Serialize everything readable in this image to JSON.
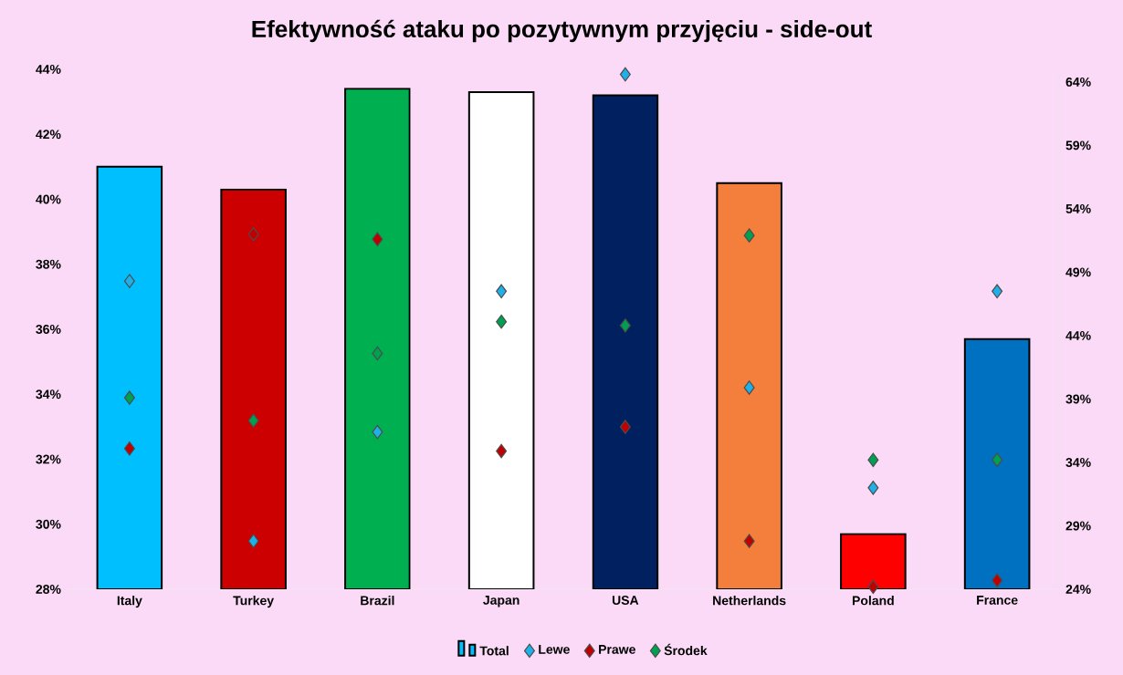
{
  "chart_data": {
    "type": "bar",
    "title": "Efektywność ataku po pozytywnym przyjęciu - side-out",
    "categories": [
      "Italy",
      "Turkey",
      "Brazil",
      "Japan",
      "USA",
      "Netherlands",
      "Poland",
      "France"
    ],
    "series": [
      {
        "name": "Total",
        "colors": [
          "#00bfff",
          "#cc0000",
          "#00b050",
          "#ffffff",
          "#002060",
          "#f47f3c",
          "#ff0000",
          "#0070c0"
        ],
        "values": [
          41.0,
          40.3,
          43.4,
          43.3,
          43.2,
          40.5,
          29.7,
          35.7
        ]
      },
      {
        "name": "Lewe",
        "type": "scatter",
        "axis": "y2",
        "color": "#1fb0e8",
        "values": [
          48.3,
          27.8,
          36.4,
          47.5,
          64.6,
          39.9,
          32.0,
          47.5
        ]
      },
      {
        "name": "Prawe",
        "type": "scatter",
        "axis": "y2",
        "color": "#c00000",
        "values": [
          35.1,
          52.0,
          51.6,
          34.9,
          36.8,
          27.8,
          24.2,
          24.7
        ]
      },
      {
        "name": "Środek",
        "type": "scatter",
        "axis": "y2",
        "color": "#00a050",
        "values": [
          39.1,
          37.3,
          42.6,
          45.1,
          44.8,
          51.9,
          34.2,
          34.2
        ]
      }
    ],
    "ylim": [
      28,
      44
    ],
    "yticks": [
      {
        "value": 28,
        "label": "28%"
      },
      {
        "value": 30,
        "label": "30%"
      },
      {
        "value": 32,
        "label": "32%"
      },
      {
        "value": 34,
        "label": "34%"
      },
      {
        "value": 36,
        "label": "36%"
      },
      {
        "value": 38,
        "label": "38%"
      },
      {
        "value": 40,
        "label": "40%"
      },
      {
        "value": 42,
        "label": "42%"
      },
      {
        "value": 44,
        "label": "44%"
      }
    ],
    "y2lim": [
      24,
      65
    ],
    "y2ticks": [
      {
        "value": 24,
        "label": "24%"
      },
      {
        "value": 29,
        "label": "29%"
      },
      {
        "value": 34,
        "label": "34%"
      },
      {
        "value": 39,
        "label": "39%"
      },
      {
        "value": 44,
        "label": "44%"
      },
      {
        "value": 49,
        "label": "49%"
      },
      {
        "value": 54,
        "label": "54%"
      },
      {
        "value": 59,
        "label": "59%"
      },
      {
        "value": 64,
        "label": "64%"
      }
    ],
    "marker": "diamond",
    "legend": "bottom"
  }
}
